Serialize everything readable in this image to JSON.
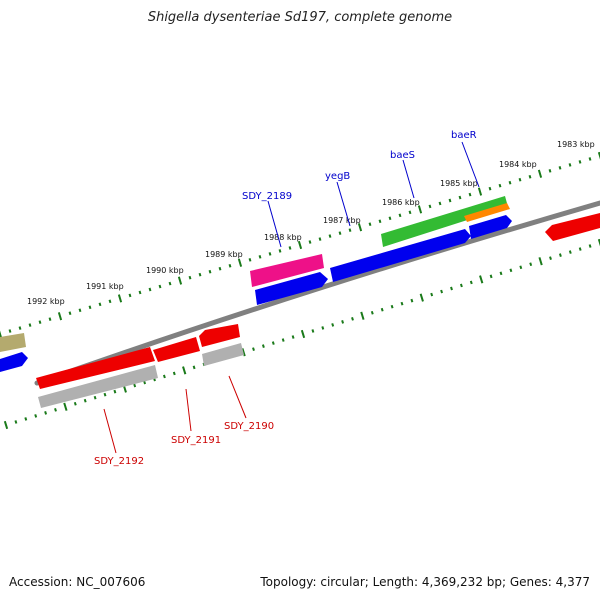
{
  "title": "Shigella dysenteriae Sd197, complete genome",
  "footer": {
    "accession": "Accession: NC_007606",
    "summary": "Topology: circular; Length: 4,369,232 bp; Genes: 4,377"
  },
  "colors": {
    "backbone": "#808080",
    "ticks": "#1a7a1a",
    "forward_label": "#0000cc",
    "reverse_label": "#cc0000",
    "blue": "#0000ee",
    "red": "#ee0000",
    "grey": "#b0b0b0",
    "pink": "#ee1188",
    "green": "#33bb33",
    "orange": "#ff8800",
    "olive": "#b4aa6e"
  },
  "ruler": {
    "kbp_labels": [
      "1983 kbp",
      "1984 kbp",
      "1985 kbp",
      "1986 kbp",
      "1987 kbp",
      "1988 kbp",
      "1989 kbp",
      "1990 kbp",
      "1991 kbp",
      "1992 kbp"
    ]
  },
  "gene_labels": {
    "forward": [
      "baeR",
      "baeS",
      "yegB",
      "SDY_2189"
    ],
    "reverse": [
      "SDY_2190",
      "SDY_2191",
      "SDY_2192"
    ]
  }
}
